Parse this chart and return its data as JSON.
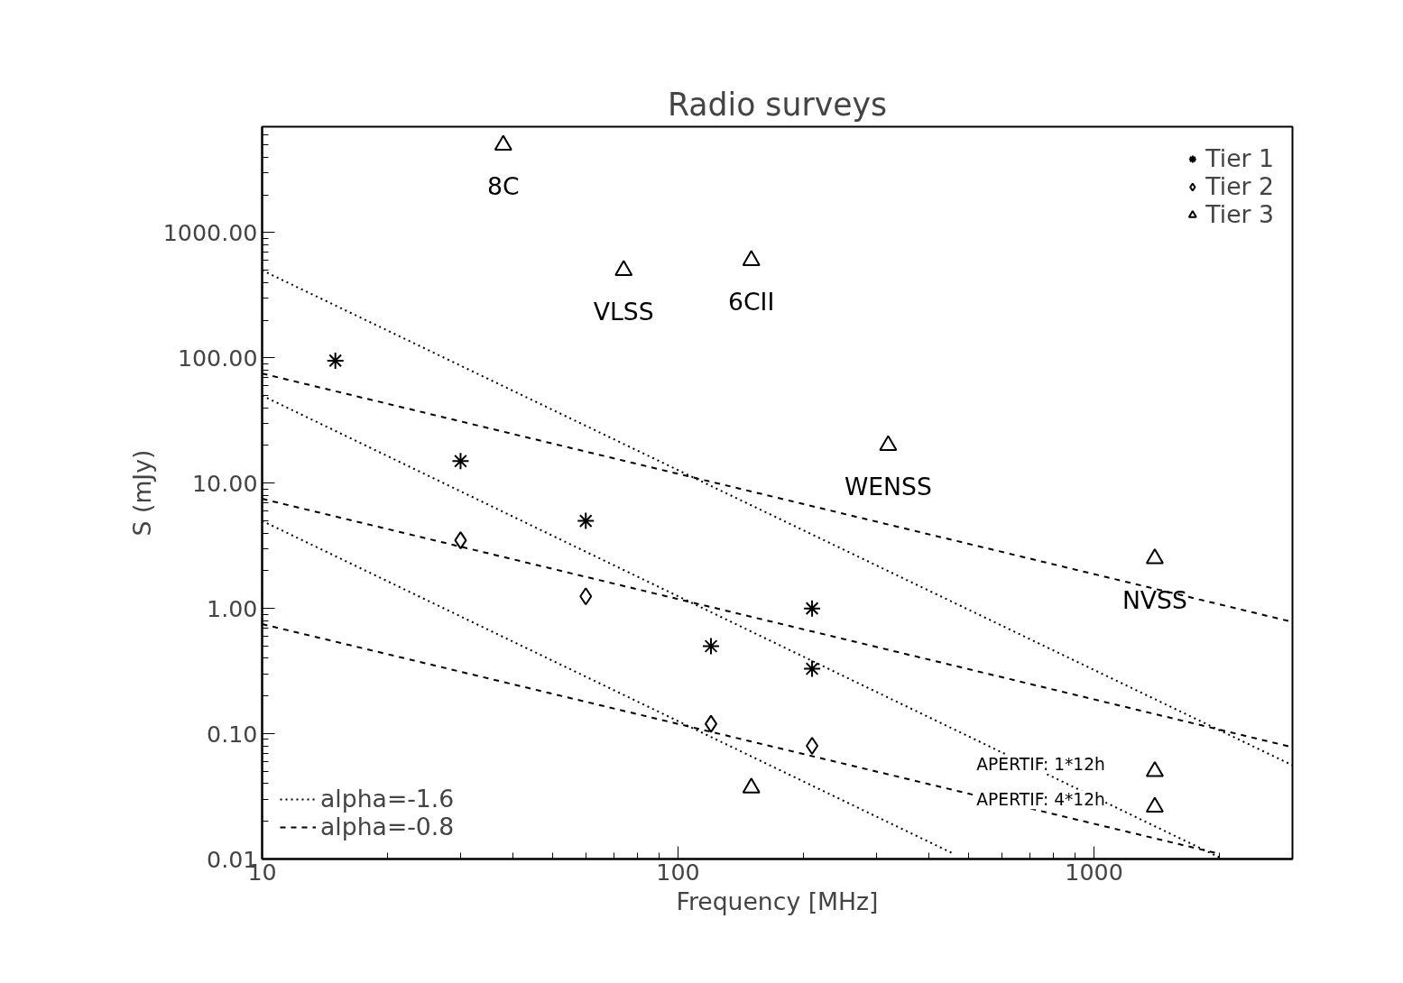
{
  "chart_data": {
    "type": "scatter",
    "title": "Radio surveys",
    "xlabel": "Frequency [MHz]",
    "ylabel": "S (mJy)",
    "log": "xy",
    "grid": false,
    "legend": "bottom left",
    "xlim": [
      10,
      3000
    ],
    "ylim": [
      0.01,
      7000
    ],
    "xticks": [
      10,
      100,
      1000
    ],
    "yticks": [
      {
        "value": 0.01,
        "label": "0.01"
      },
      {
        "value": 0.1,
        "label": "0.10"
      },
      {
        "value": 1,
        "label": "1.00"
      },
      {
        "value": 10,
        "label": "10.00"
      },
      {
        "value": 100,
        "label": "100.00"
      },
      {
        "value": 1000,
        "label": "1000.00"
      }
    ],
    "series": [
      {
        "name": "Tier 1",
        "marker": "cross",
        "color": "#000000",
        "x": [
          15,
          30,
          60,
          120,
          210,
          210
        ],
        "values": [
          95,
          15,
          5,
          0.5,
          1.0,
          0.33
        ]
      },
      {
        "name": "Tier 2",
        "marker": "diamond",
        "color": "#000000",
        "x": [
          30,
          60,
          120,
          210
        ],
        "values": [
          3.5,
          1.25,
          0.12,
          0.08
        ]
      },
      {
        "name": "Tier 3",
        "marker": "triangle",
        "color": "#000000",
        "x": [
          38,
          74,
          150,
          320,
          1400,
          150,
          1400,
          1400
        ],
        "values": [
          5000,
          500,
          600,
          20,
          2.5,
          0.037,
          0.05,
          0.026
        ]
      },
      {
        "name": "alpha=-1.6",
        "type": "line",
        "line_style": "dotted",
        "color": "#000000",
        "x": [
          10,
          3000
        ],
        "values": [
          500,
          0.056
        ]
      },
      {
        "type": "line",
        "line_style": "dotted",
        "color": "#000000",
        "x": [
          10,
          2040
        ],
        "values": [
          50,
          0.01
        ]
      },
      {
        "type": "line",
        "line_style": "dotted",
        "color": "#000000",
        "x": [
          10,
          460
        ],
        "values": [
          5,
          0.011
        ]
      },
      {
        "name": "alpha=-0.8",
        "type": "line",
        "line_style": "dashed",
        "color": "#000000",
        "x": [
          10,
          3000
        ],
        "values": [
          75,
          0.78
        ]
      },
      {
        "type": "line",
        "line_style": "dashed",
        "color": "#000000",
        "x": [
          10,
          3000
        ],
        "values": [
          7.5,
          0.078
        ]
      },
      {
        "type": "line",
        "line_style": "dashed",
        "color": "#000000",
        "x": [
          10,
          2000
        ],
        "values": [
          0.75,
          0.011
        ]
      }
    ],
    "annotations": [
      {
        "text": "8C",
        "x": 38,
        "y": 5000
      },
      {
        "text": "VLSS",
        "x": 74,
        "y": 500
      },
      {
        "text": "6CII",
        "x": 150,
        "y": 600
      },
      {
        "text": "WENSS",
        "x": 320,
        "y": 20
      },
      {
        "text": "NVSS",
        "x": 1400,
        "y": 2.5
      },
      {
        "text": "APERTIF: 1*12h",
        "x": 1400,
        "y": 0.05
      },
      {
        "text": "APERTIF: 4*12h",
        "x": 1400,
        "y": 0.026
      }
    ]
  }
}
